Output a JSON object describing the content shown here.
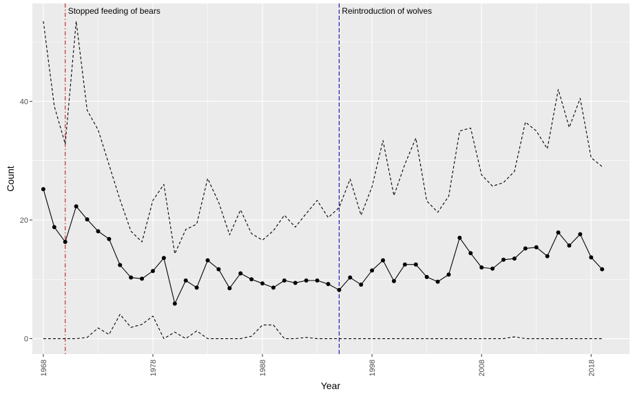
{
  "chart_data": {
    "type": "line",
    "xlabel": "Year",
    "ylabel": "Count",
    "xlim": [
      1967,
      2021.5
    ],
    "ylim": [
      -2.6,
      56.5
    ],
    "x_ticks": [
      1968,
      1978,
      1988,
      1998,
      2008,
      2018
    ],
    "x_tick_labels": [
      "1968",
      "1978",
      "1988",
      "1998",
      "2008",
      "2018"
    ],
    "y_ticks": [
      0,
      20,
      40
    ],
    "y_tick_labels": [
      "0",
      "20",
      "40"
    ],
    "grid": true,
    "background": "#ebebeb",
    "vlines": [
      {
        "x": 1970,
        "label": "Stopped feeding of bears",
        "color": "#ff0000",
        "style": "dashdot"
      },
      {
        "x": 1995,
        "label": "Reintroduction of wolves",
        "color": "#0000ff",
        "style": "dashed"
      }
    ],
    "x": [
      1968,
      1969,
      1970,
      1971,
      1972,
      1973,
      1974,
      1975,
      1976,
      1977,
      1978,
      1979,
      1980,
      1981,
      1982,
      1983,
      1984,
      1985,
      1986,
      1987,
      1988,
      1989,
      1990,
      1991,
      1992,
      1993,
      1994,
      1995,
      1996,
      1997,
      1998,
      1999,
      2000,
      2001,
      2002,
      2003,
      2004,
      2005,
      2006,
      2007,
      2008,
      2009,
      2010,
      2011,
      2012,
      2013,
      2014,
      2015,
      2016,
      2017,
      2018,
      2019
    ],
    "series": [
      {
        "role": "estimate",
        "style": "solid-with-points",
        "values": [
          25.2,
          18.8,
          16.3,
          22.3,
          20.1,
          18.1,
          16.8,
          12.4,
          10.3,
          10.1,
          11.4,
          13.6,
          5.9,
          9.8,
          8.6,
          13.2,
          11.7,
          8.5,
          11.0,
          10.0,
          9.3,
          8.6,
          9.8,
          9.4,
          9.8,
          9.8,
          9.2,
          8.2,
          10.3,
          9.1,
          11.5,
          13.2,
          9.7,
          12.5,
          12.5,
          10.4,
          9.6,
          10.8,
          17.0,
          14.4,
          12.0,
          11.8,
          13.3,
          13.5,
          15.2,
          15.4,
          13.9,
          17.9,
          15.7,
          17.6,
          13.7,
          11.7
        ]
      },
      {
        "role": "upper-bound",
        "style": "dashed",
        "values": [
          53.5,
          39.2,
          32.8,
          53.5,
          38.5,
          35.2,
          29.3,
          23.4,
          18.1,
          16.3,
          23.3,
          26.0,
          14.3,
          18.4,
          19.3,
          27.0,
          23.0,
          17.5,
          21.7,
          17.7,
          16.6,
          18.2,
          20.8,
          18.8,
          21.1,
          23.3,
          20.4,
          22.1,
          26.9,
          20.8,
          25.6,
          33.4,
          24.1,
          29.4,
          33.8,
          23.2,
          21.3,
          24.0,
          35.0,
          35.5,
          27.6,
          25.7,
          26.3,
          28.2,
          36.5,
          35.0,
          32.0,
          42.0,
          35.6,
          40.5,
          30.5,
          29.0
        ]
      },
      {
        "role": "lower-bound",
        "style": "dashed",
        "values": [
          0,
          0,
          0,
          0,
          0.2,
          1.8,
          0.7,
          4.1,
          1.9,
          2.4,
          3.8,
          0,
          1.1,
          0,
          1.3,
          0,
          0,
          0,
          0,
          0.4,
          2.3,
          2.3,
          0,
          0,
          0.2,
          0,
          0,
          0,
          0,
          0,
          0,
          0,
          0,
          0,
          0,
          0,
          0,
          0,
          0,
          0,
          0,
          0,
          0,
          0.3,
          0,
          0,
          0,
          0,
          0,
          0,
          0,
          0
        ]
      }
    ]
  }
}
